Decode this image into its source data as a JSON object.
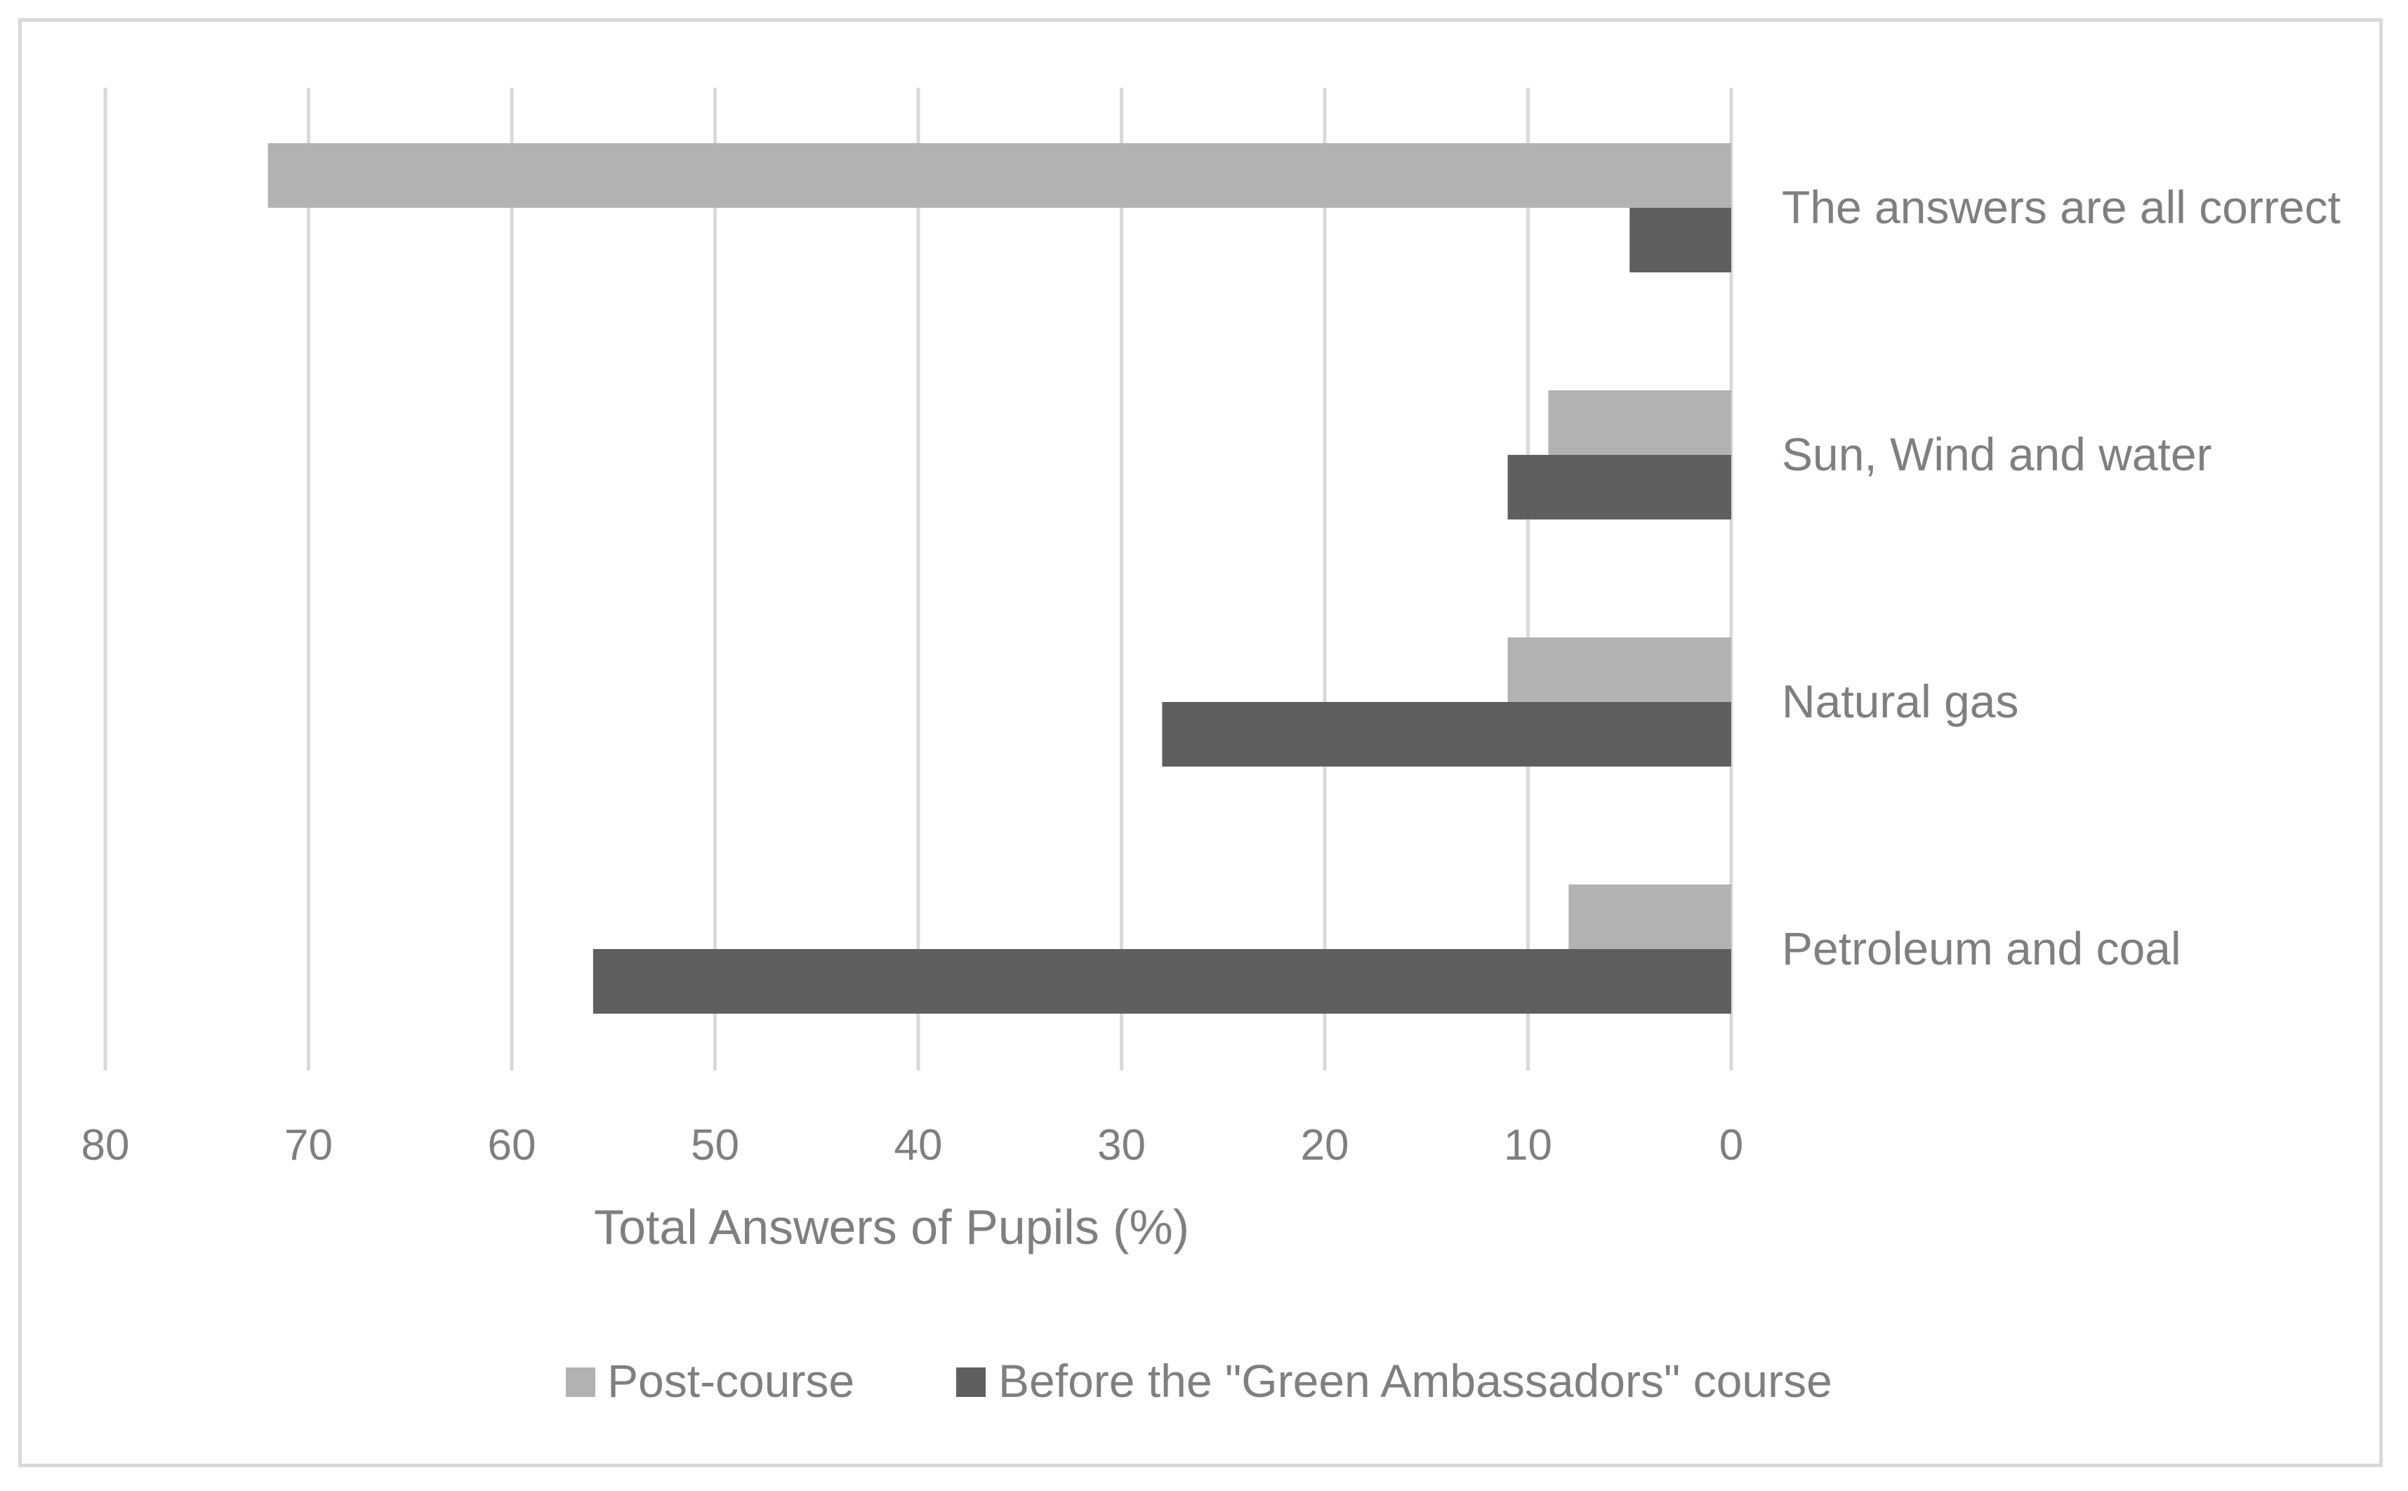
{
  "chart_data": {
    "type": "bar",
    "orientation": "horizontal",
    "x_reversed": true,
    "categories": [
      "The answers are all correct",
      "Sun, Wind and water",
      "Natural gas",
      "Petroleum and coal"
    ],
    "series": [
      {
        "name": "Post-course",
        "values": [
          72,
          9,
          11,
          8
        ],
        "color": "#b2b2b2"
      },
      {
        "name": "Before the \"Green Ambassadors\" course",
        "values": [
          5,
          11,
          28,
          56
        ],
        "color": "#5f5f5f"
      }
    ],
    "xlabel": "Total  Answers of Pupils (%)",
    "xlim": [
      0,
      80
    ],
    "xticks": [
      "80",
      "70",
      "60",
      "50",
      "40",
      "30",
      "20",
      "10",
      "0"
    ],
    "grid": "vertical",
    "legend": "bottom",
    "colors": {
      "grid": "#d9d9d9",
      "text": "#7f7f7f",
      "frame": "#d9d9d9"
    }
  }
}
